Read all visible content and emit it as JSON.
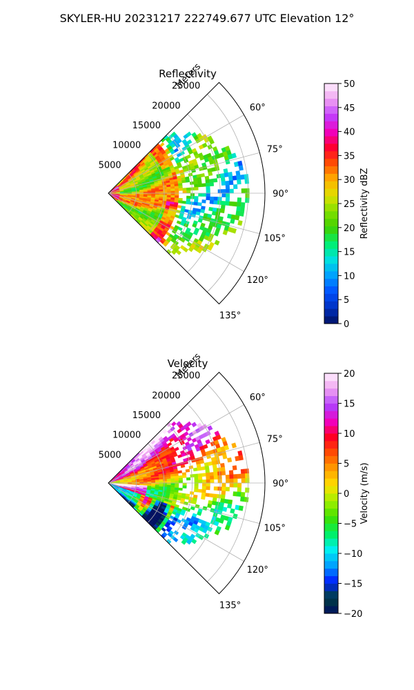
{
  "figure": {
    "title": "SKYLER-HU  20231217  222749.677 UTC Elevation 12°"
  },
  "chart_data": [
    {
      "type": "heatmap",
      "title": "Reflectivity",
      "projection": "polar-sector",
      "radial_label": "Meters",
      "radial_ticks": [
        "5000",
        "10000",
        "15000",
        "20000",
        "25000"
      ],
      "radial_tick_values": [
        5000,
        10000,
        15000,
        20000,
        25000
      ],
      "radial_range": [
        0,
        28000
      ],
      "azimuth_range_deg": [
        45,
        135
      ],
      "azimuth_ticks": [
        "60°",
        "75°",
        "90°",
        "105°",
        "120°",
        "135°"
      ],
      "azimuth_tick_values": [
        60,
        75,
        90,
        105,
        120,
        135
      ],
      "grid": true,
      "colorbar": {
        "label": "Reflectivity dBZ",
        "range": [
          0,
          50
        ],
        "ticks": [
          "0",
          "5",
          "10",
          "15",
          "20",
          "25",
          "30",
          "35",
          "40",
          "45",
          "50"
        ],
        "tick_values": [
          0,
          5,
          10,
          15,
          20,
          25,
          30,
          35,
          40,
          45,
          50
        ],
        "colors": [
          "#001060",
          "#0030c0",
          "#0050ff",
          "#00a0ff",
          "#00e0e0",
          "#00f070",
          "#40d000",
          "#80e000",
          "#e0e000",
          "#ffb000",
          "#ff5000",
          "#ff0030",
          "#f000c0",
          "#c040ff",
          "#f0a0f0",
          "#fff0ff"
        ]
      }
    },
    {
      "type": "heatmap",
      "title": "Velocity",
      "projection": "polar-sector",
      "radial_label": "Meters",
      "radial_ticks": [
        "5000",
        "10000",
        "15000",
        "20000",
        "25000"
      ],
      "radial_tick_values": [
        5000,
        10000,
        15000,
        20000,
        25000
      ],
      "radial_range": [
        0,
        28000
      ],
      "azimuth_range_deg": [
        45,
        135
      ],
      "azimuth_ticks": [
        "60°",
        "75°",
        "90°",
        "105°",
        "120°",
        "135°"
      ],
      "azimuth_tick_values": [
        60,
        75,
        90,
        105,
        120,
        135
      ],
      "grid": true,
      "colorbar": {
        "label": "Velocity (m/s)",
        "range": [
          -20,
          20
        ],
        "ticks": [
          "−20",
          "−15",
          "−10",
          "−5",
          "0",
          "5",
          "10",
          "15",
          "20"
        ],
        "tick_values": [
          -20,
          -15,
          -10,
          -5,
          0,
          5,
          10,
          15,
          20
        ],
        "colors": [
          "#001060",
          "#004040",
          "#0020ff",
          "#00a0ff",
          "#00f0f0",
          "#00f060",
          "#40e000",
          "#a0f000",
          "#ffe000",
          "#ffa000",
          "#ff5000",
          "#ff0020",
          "#f000c0",
          "#b040ff",
          "#f0a0f0",
          "#fff0ff"
        ]
      }
    }
  ]
}
